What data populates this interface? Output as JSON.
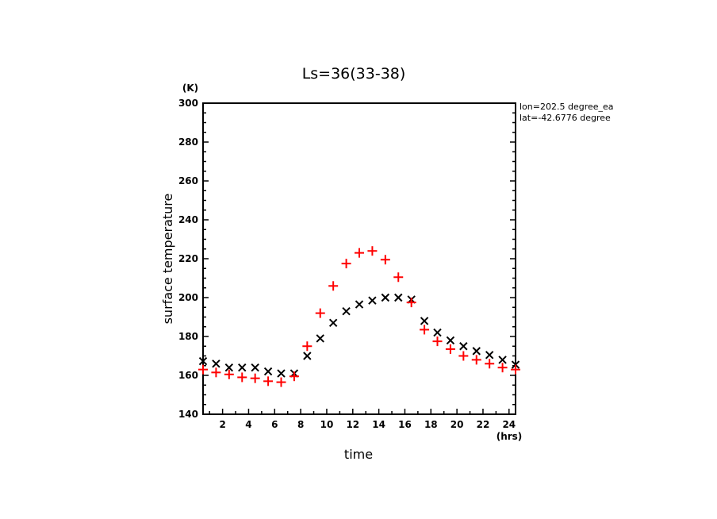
{
  "chart_data": {
    "type": "scatter",
    "title": "Ls=36(33-38)",
    "xlabel": "time",
    "ylabel": "surface temperature",
    "x_unit": "(hrs)",
    "y_unit": "(K)",
    "xlim": [
      0.5,
      24.5
    ],
    "ylim": [
      140,
      300
    ],
    "xticks": [
      2,
      4,
      6,
      8,
      10,
      12,
      14,
      16,
      18,
      20,
      22,
      24
    ],
    "yticks": [
      140,
      160,
      180,
      200,
      220,
      240,
      260,
      280,
      300
    ],
    "annotations": [
      "lon=202.5 degree_ea",
      "lat=-42.6776 degree"
    ],
    "grid": false,
    "x": [
      0.5,
      1.5,
      2.5,
      3.5,
      4.5,
      5.5,
      6.5,
      7.5,
      8.5,
      9.5,
      10.5,
      11.5,
      12.5,
      13.5,
      14.5,
      15.5,
      16.5,
      17.5,
      18.5,
      19.5,
      20.5,
      21.5,
      22.5,
      23.5,
      24.5
    ],
    "series": [
      {
        "name": "black-x",
        "marker": "x",
        "color": "#000000",
        "values": [
          167.3,
          166,
          164,
          164,
          164,
          162,
          161,
          161,
          170,
          179,
          187,
          193,
          196.5,
          198.5,
          200,
          200,
          199,
          188,
          182,
          178,
          175,
          172.5,
          170.5,
          168,
          165.5
        ]
      },
      {
        "name": "red-plus",
        "marker": "+",
        "color": "#ff0000",
        "values": [
          163,
          161.5,
          160.5,
          159,
          158.5,
          157,
          156.5,
          159.5,
          175,
          192,
          206,
          217.5,
          223,
          224,
          219.5,
          210.5,
          197.5,
          183.5,
          177.5,
          173.5,
          170,
          168,
          166,
          164,
          163
        ]
      }
    ]
  }
}
